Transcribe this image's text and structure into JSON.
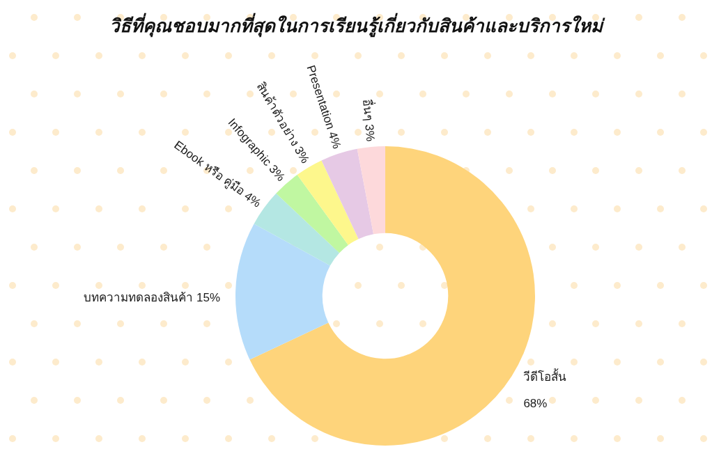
{
  "chart_data": {
    "type": "donut",
    "title": "วิธีที่คุณชอบมากที่สุดในการเรียนรู้เกี่ยวกับสินค้าและบริการใหม่",
    "categories": [
      "วีดีโอสั้น",
      "บทความทดลองสินค้า",
      "Ebook หรือ คู่มือ",
      "Infographic",
      "สินค้าตัวอย่าง",
      "Presentation",
      "อื่นๆ"
    ],
    "values": [
      68,
      15,
      4,
      3,
      3,
      4,
      3
    ],
    "value_labels": [
      "68%",
      "15%",
      "4%",
      "3%",
      "3%",
      "4%",
      "3%"
    ],
    "colors": [
      "#fed47b",
      "#b5dcfa",
      "#b4e7e3",
      "#c0f7a1",
      "#fdf78c",
      "#e6c9e5",
      "#fdd9db"
    ]
  }
}
